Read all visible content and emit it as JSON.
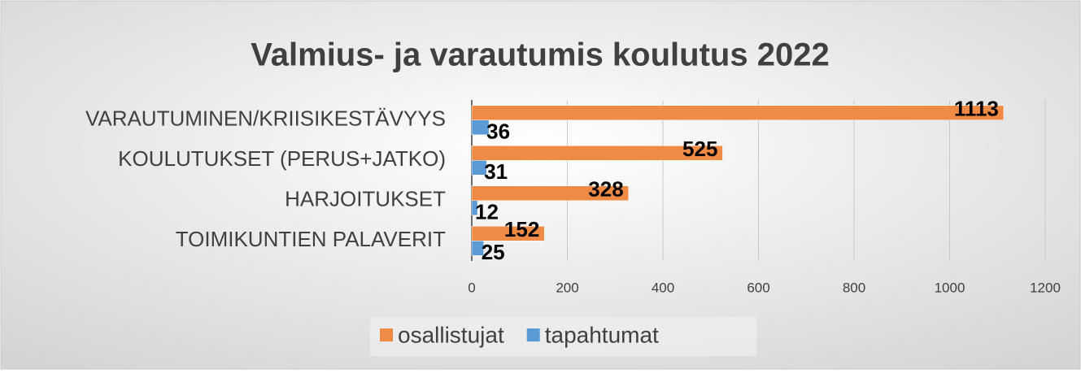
{
  "chart_data": {
    "type": "barh",
    "title": "Valmius- ja varautumis koulutus 2022",
    "categories": [
      "VARAUTUMINEN/KRIISIKESTÄVYYS",
      "KOULUTUKSET (PERUS+JATKO)",
      "HARJOITUKSET",
      "TOIMIKUNTIEN PALAVERIT"
    ],
    "series": [
      {
        "name": "osallistujat",
        "color": "#f08b45",
        "values": [
          1113,
          525,
          328,
          152
        ]
      },
      {
        "name": "tapahtumat",
        "color": "#5b9bd5",
        "values": [
          36,
          31,
          12,
          25
        ]
      }
    ],
    "xlim": [
      0,
      1200
    ],
    "xticks": [
      0,
      200,
      400,
      600,
      800,
      1000,
      1200
    ],
    "grid": true,
    "legend": "bottom"
  }
}
